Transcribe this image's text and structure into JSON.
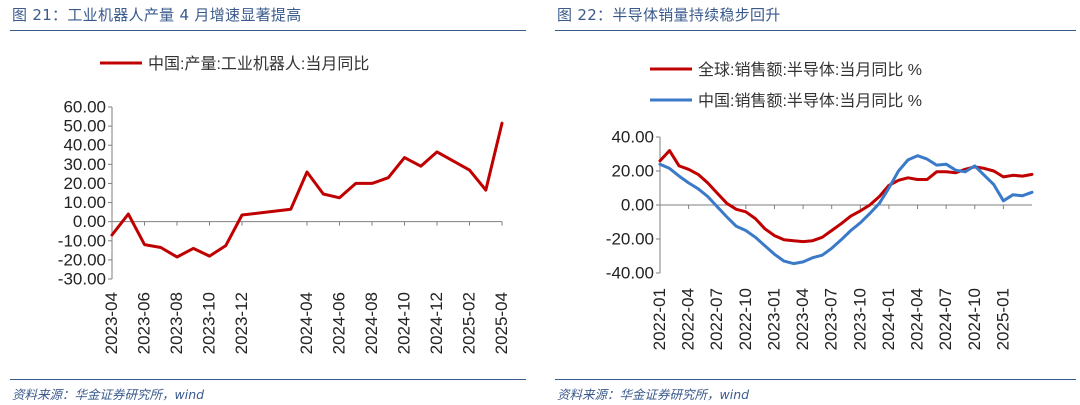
{
  "charts": [
    {
      "figure_title": "图 21：工业机器人产量 4 月增速显著提高",
      "source": "资料来源：华金证券研究所，wind",
      "legend_position": "top"
    },
    {
      "figure_title": "图 22：半导体销量持续稳步回升",
      "source": "资料来源：华金证券研究所，wind",
      "legend_position": "top"
    }
  ],
  "chart_data": [
    {
      "type": "line",
      "title": "工业机器人产量 4 月增速显著提高",
      "xlabel": "",
      "ylabel": "",
      "ylim": [
        -30,
        60
      ],
      "yticks": [
        "60.00",
        "50.00",
        "40.00",
        "30.00",
        "20.00",
        "10.00",
        "0.00",
        "-10.00",
        "-20.00",
        "-30.00"
      ],
      "xtick_labels": [
        "2023-04",
        "2023-06",
        "2023-08",
        "2023-10",
        "2023-12",
        "2024-04",
        "2024-06",
        "2024-08",
        "2024-10",
        "2024-12",
        "2025-02",
        "2025-04"
      ],
      "grid": false,
      "series": [
        {
          "name": "中国:产量:工业机器人:当月同比",
          "color": "#c00000",
          "x": [
            "2023-04",
            "2023-05",
            "2023-06",
            "2023-07",
            "2023-08",
            "2023-09",
            "2023-10",
            "2023-11",
            "2023-12",
            "2024-03",
            "2024-04",
            "2024-05",
            "2024-06",
            "2024-07",
            "2024-08",
            "2024-09",
            "2024-10",
            "2024-11",
            "2024-12",
            "2025-02",
            "2025-03",
            "2025-04"
          ],
          "values": [
            -7.0,
            4.0,
            -12.0,
            -13.5,
            -18.5,
            -14.0,
            -18.0,
            -12.5,
            3.5,
            6.5,
            26.0,
            14.5,
            12.5,
            20.0,
            20.0,
            23.0,
            33.5,
            29.0,
            36.5,
            27.0,
            16.5,
            51.5
          ]
        }
      ]
    },
    {
      "type": "line",
      "title": "半导体销量持续稳步回升",
      "xlabel": "",
      "ylabel": "",
      "ylim": [
        -40,
        40
      ],
      "yticks": [
        "40.00",
        "20.00",
        "0.00",
        "-20.00",
        "-40.00"
      ],
      "xtick_labels": [
        "2022-01",
        "2022-04",
        "2022-07",
        "2022-10",
        "2023-01",
        "2023-04",
        "2023-07",
        "2023-10",
        "2024-01",
        "2024-04",
        "2024-07",
        "2024-10",
        "2025-01"
      ],
      "grid": false,
      "series": [
        {
          "name": "全球:销售额:半导体:当月同比 %",
          "color": "#c00000",
          "x_start": "2022-01",
          "values": [
            26.0,
            32.0,
            23.0,
            21.0,
            18.0,
            13.0,
            7.0,
            1.0,
            -2.5,
            -4.0,
            -8.0,
            -14.0,
            -18.0,
            -20.5,
            -21.0,
            -21.5,
            -21.0,
            -19.0,
            -15.0,
            -11.0,
            -6.5,
            -3.5,
            0.0,
            5.0,
            11.5,
            14.5,
            16.0,
            15.0,
            15.0,
            19.5,
            19.5,
            19.0,
            21.0,
            22.5,
            21.5,
            20.0,
            16.5,
            17.5,
            17.0,
            18.0
          ]
        },
        {
          "name": "中国:销售额:半导体:当月同比 %",
          "color": "#3a7ac8",
          "x_start": "2022-01",
          "values": [
            24.0,
            21.5,
            17.0,
            13.0,
            9.5,
            5.0,
            -1.0,
            -7.0,
            -12.5,
            -15.0,
            -19.0,
            -24.0,
            -29.0,
            -33.0,
            -34.5,
            -33.5,
            -31.0,
            -29.5,
            -25.5,
            -20.5,
            -15.0,
            -10.5,
            -5.0,
            1.0,
            10.0,
            20.0,
            26.5,
            29.0,
            27.0,
            23.5,
            24.0,
            20.5,
            19.5,
            23.0,
            17.5,
            12.0,
            2.5,
            6.0,
            5.5,
            7.5
          ]
        }
      ]
    }
  ]
}
